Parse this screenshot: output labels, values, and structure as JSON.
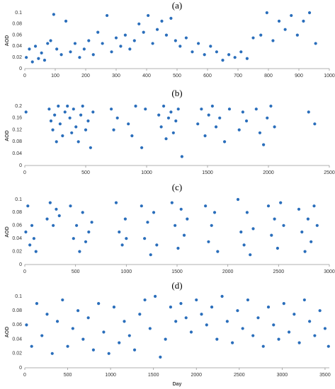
{
  "chart_data": [
    {
      "type": "scatter",
      "title": "(a)",
      "y_label": "AOD",
      "color": "#2a6ebb",
      "grid": false,
      "x": [
        5,
        15,
        25,
        35,
        45,
        55,
        65,
        75,
        85,
        95,
        105,
        120,
        135,
        150,
        165,
        180,
        195,
        210,
        225,
        240,
        255,
        270,
        285,
        300,
        315,
        330,
        345,
        360,
        375,
        390,
        405,
        420,
        435,
        450,
        465,
        480,
        495,
        510,
        530,
        550,
        570,
        590,
        610,
        630,
        650,
        670,
        690,
        710,
        730,
        750,
        775,
        795,
        815,
        835,
        855,
        875,
        895,
        915,
        935,
        955
      ],
      "values": [
        0.02,
        0.035,
        0.012,
        0.04,
        0.018,
        0.028,
        0.015,
        0.045,
        0.05,
        0.097,
        0.035,
        0.025,
        0.085,
        0.03,
        0.045,
        0.02,
        0.035,
        0.05,
        0.025,
        0.065,
        0.045,
        0.095,
        0.03,
        0.055,
        0.04,
        0.06,
        0.035,
        0.05,
        0.08,
        0.065,
        0.095,
        0.045,
        0.07,
        0.085,
        0.06,
        0.09,
        0.05,
        0.04,
        0.055,
        0.03,
        0.045,
        0.025,
        0.04,
        0.03,
        0.015,
        0.025,
        0.02,
        0.03,
        0.018,
        0.055,
        0.06,
        0.1,
        0.05,
        0.085,
        0.07,
        0.095,
        0.06,
        0.085,
        0.1,
        0.045
      ],
      "xlim": [
        0,
        1000
      ],
      "xticks": [
        0,
        100,
        200,
        300,
        400,
        500,
        600,
        700,
        800,
        900,
        1000
      ],
      "ylim": [
        0,
        0.1
      ],
      "yticks": [
        0,
        0.02,
        0.04,
        0.06,
        0.08,
        0.1
      ]
    },
    {
      "type": "scatter",
      "title": "(b)",
      "y_label": "AOD",
      "color": "#2a6ebb",
      "grid": false,
      "x": [
        10,
        200,
        215,
        230,
        245,
        260,
        275,
        290,
        310,
        330,
        350,
        370,
        385,
        400,
        420,
        440,
        460,
        475,
        500,
        520,
        540,
        560,
        710,
        730,
        760,
        850,
        880,
        910,
        960,
        990,
        1100,
        1120,
        1140,
        1160,
        1180,
        1200,
        1220,
        1240,
        1260,
        1290,
        1420,
        1450,
        1480,
        1510,
        1540,
        1570,
        1600,
        1640,
        1680,
        1760,
        1790,
        1820,
        1900,
        1930,
        1960,
        1990,
        2020,
        2050,
        2330,
        2380
      ],
      "values": [
        0.18,
        0.19,
        0.15,
        0.12,
        0.17,
        0.08,
        0.2,
        0.14,
        0.1,
        0.18,
        0.2,
        0.16,
        0.11,
        0.19,
        0.13,
        0.08,
        0.17,
        0.2,
        0.12,
        0.15,
        0.06,
        0.18,
        0.19,
        0.12,
        0.16,
        0.14,
        0.1,
        0.2,
        0.06,
        0.19,
        0.17,
        0.13,
        0.2,
        0.09,
        0.16,
        0.18,
        0.11,
        0.15,
        0.19,
        0.03,
        0.14,
        0.19,
        0.1,
        0.17,
        0.2,
        0.13,
        0.16,
        0.08,
        0.19,
        0.12,
        0.18,
        0.15,
        0.19,
        0.11,
        0.07,
        0.16,
        0.2,
        0.13,
        0.18,
        0.14
      ],
      "xlim": [
        0,
        2500
      ],
      "xticks": [
        0,
        500,
        1000,
        1500,
        2000,
        2500
      ],
      "ylim": [
        0,
        0.2
      ],
      "yticks": [
        0,
        0.04,
        0.08,
        0.12,
        0.16,
        0.2
      ]
    },
    {
      "type": "scatter",
      "title": "(c)",
      "y_label": "AOD",
      "color": "#2a6ebb",
      "grid": false,
      "x": [
        10,
        30,
        50,
        70,
        90,
        110,
        220,
        250,
        280,
        310,
        340,
        450,
        480,
        510,
        540,
        570,
        600,
        630,
        900,
        930,
        960,
        990,
        1150,
        1180,
        1210,
        1240,
        1270,
        1300,
        1450,
        1480,
        1510,
        1540,
        1570,
        1600,
        1780,
        1810,
        1840,
        1870,
        1900,
        2100,
        2130,
        2160,
        2190,
        2220,
        2400,
        2430,
        2460,
        2490,
        2520,
        2550,
        2700,
        2730,
        2760,
        2790,
        2820,
        2850,
        2880,
        1000,
        660,
        2250
      ],
      "values": [
        0.05,
        0.09,
        0.03,
        0.06,
        0.04,
        0.02,
        0.07,
        0.095,
        0.06,
        0.085,
        0.075,
        0.09,
        0.04,
        0.06,
        0.02,
        0.08,
        0.035,
        0.05,
        0.095,
        0.05,
        0.03,
        0.07,
        0.09,
        0.04,
        0.065,
        0.015,
        0.08,
        0.03,
        0.095,
        0.06,
        0.025,
        0.085,
        0.045,
        0.07,
        0.09,
        0.035,
        0.06,
        0.08,
        0.02,
        0.1,
        0.05,
        0.03,
        0.08,
        0.015,
        0.09,
        0.045,
        0.07,
        0.025,
        0.095,
        0.06,
        0.085,
        0.05,
        0.02,
        0.07,
        0.035,
        0.09,
        0.06,
        0.04,
        0.065,
        0.055
      ],
      "xlim": [
        0,
        3000
      ],
      "xticks": [
        0,
        500,
        1000,
        1500,
        2000,
        2500,
        3000
      ],
      "ylim": [
        0,
        0.1
      ],
      "yticks": [
        0,
        0.02,
        0.04,
        0.06,
        0.08,
        0.1
      ]
    },
    {
      "type": "scatter",
      "title": "(d)",
      "y_label": "AOD",
      "x_label": "Day",
      "color": "#2a6ebb",
      "grid": false,
      "x": [
        20,
        80,
        140,
        200,
        260,
        320,
        380,
        440,
        500,
        560,
        620,
        680,
        740,
        800,
        860,
        920,
        980,
        1040,
        1100,
        1160,
        1220,
        1280,
        1340,
        1400,
        1460,
        1520,
        1580,
        1640,
        1700,
        1760,
        1820,
        1880,
        1940,
        2000,
        2060,
        2120,
        2180,
        2240,
        2300,
        2360,
        2420,
        2480,
        2540,
        2600,
        2660,
        2720,
        2780,
        2840,
        2900,
        2960,
        3020,
        3080,
        3140,
        3200,
        3260,
        3320,
        3380,
        3440,
        3500,
        3540
      ],
      "values": [
        0.06,
        0.03,
        0.09,
        0.045,
        0.075,
        0.02,
        0.065,
        0.095,
        0.03,
        0.055,
        0.08,
        0.04,
        0.07,
        0.025,
        0.09,
        0.05,
        0.02,
        0.085,
        0.035,
        0.065,
        0.045,
        0.025,
        0.075,
        0.095,
        0.055,
        0.1,
        0.015,
        0.04,
        0.085,
        0.065,
        0.09,
        0.07,
        0.05,
        0.095,
        0.075,
        0.06,
        0.085,
        0.04,
        0.1,
        0.065,
        0.035,
        0.08,
        0.055,
        0.095,
        0.045,
        0.07,
        0.03,
        0.085,
        0.06,
        0.04,
        0.09,
        0.05,
        0.075,
        0.035,
        0.095,
        0.065,
        0.045,
        0.08,
        0.055,
        0.03
      ],
      "xlim": [
        0,
        3550
      ],
      "xticks": [
        0,
        500,
        1000,
        1500,
        2000,
        2500,
        3000,
        3500
      ],
      "ylim": [
        0,
        0.1
      ],
      "yticks": [
        0,
        0.02,
        0.04,
        0.06,
        0.08,
        0.1
      ]
    }
  ]
}
